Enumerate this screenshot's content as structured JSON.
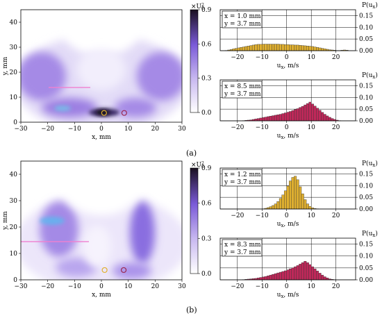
{
  "panels": [
    {
      "caption": "(a)",
      "heatmap": {
        "xlabel": "x, mm",
        "ylabel": "y, mm",
        "xticks": [
          "−30",
          "−20",
          "−10",
          "0",
          "10",
          "20",
          "30"
        ],
        "yticks": [
          "0",
          "10",
          "20",
          "30",
          "40"
        ],
        "colorbar": {
          "label": "×U",
          "label_sup": "2",
          "label_sub": "0",
          "ticks": [
            "0.0",
            "0.3",
            "0.6",
            "0.9"
          ]
        },
        "markers": [
          {
            "x": 1.0,
            "y": 3.7,
            "color": "#e0b030"
          },
          {
            "x": 8.5,
            "y": 3.7,
            "color": "#9b2a52"
          }
        ]
      },
      "histograms": [
        {
          "info_x": "x = 1.0 mm",
          "info_y": "y = 3.7 mm",
          "xlabel": "u",
          "xlabel_sub": "x",
          "xlabel_unit": ", m/s",
          "ylabel": "P(u",
          "ylabel_sub": "x",
          "ylabel_end": ")",
          "color": "#e0b030"
        },
        {
          "info_x": "x = 8.5 mm",
          "info_y": "y = 3.7 mm",
          "xlabel": "u",
          "xlabel_sub": "x",
          "xlabel_unit": ", m/s",
          "ylabel": "P(u",
          "ylabel_sub": "x",
          "ylabel_end": ")",
          "color": "#c0285a"
        }
      ]
    },
    {
      "caption": "(b)",
      "heatmap": {
        "xlabel": "x, mm",
        "ylabel": "y, mm",
        "xticks": [
          "−30",
          "−20",
          "−10",
          "0",
          "10",
          "20",
          "30"
        ],
        "yticks": [
          "0",
          "10",
          "20",
          "30",
          "40"
        ],
        "colorbar": {
          "label": "×U",
          "label_sup": "2",
          "label_sub": "0",
          "ticks": [
            "0.0",
            "0.3",
            "0.6",
            "0.9"
          ]
        },
        "markers": [
          {
            "x": 1.2,
            "y": 3.7,
            "color": "#e0b030"
          },
          {
            "x": 8.3,
            "y": 3.7,
            "color": "#9b2a52"
          }
        ]
      },
      "histograms": [
        {
          "info_x": "x = 1.2 mm",
          "info_y": "y = 3.7 mm",
          "xlabel": "u",
          "xlabel_sub": "x",
          "xlabel_unit": ", m/s",
          "ylabel": "P(u",
          "ylabel_sub": "x",
          "ylabel_end": ")",
          "color": "#e0b030"
        },
        {
          "info_x": "x = 8.3 mm",
          "info_y": "y = 3.7 mm",
          "xlabel": "u",
          "xlabel_sub": "x",
          "xlabel_unit": ", m/s",
          "ylabel": "P(u",
          "ylabel_sub": "x",
          "ylabel_end": ")",
          "color": "#c0285a"
        }
      ]
    }
  ],
  "chart_data": [
    {
      "type": "heatmap",
      "title": "",
      "xlabel": "x, mm",
      "ylabel": "y, mm",
      "xlim": [
        -30,
        30
      ],
      "ylim": [
        0,
        45
      ],
      "color_range": [
        0,
        0.9
      ],
      "colormap": [
        "#ffffff",
        "#c8b8f0",
        "#7a5ad8",
        "#1a1020"
      ],
      "regions": [
        {
          "x": -24,
          "y": 17,
          "level": 0.45
        },
        {
          "x": 24,
          "y": 17,
          "level": 0.45
        },
        {
          "x": -10,
          "y": 6,
          "level": 0.4
        },
        {
          "x": 10,
          "y": 6,
          "level": 0.4
        },
        {
          "x": 1,
          "y": 3,
          "level": 0.9
        },
        {
          "x": 0,
          "y": 28,
          "level": 0.03
        }
      ]
    },
    {
      "type": "bar",
      "title": "",
      "xlabel": "u_x, m/s",
      "ylabel": "P(u_x)",
      "bin_width": 1,
      "bins_start": -25,
      "xlim": [
        -27,
        28
      ],
      "ylim": [
        0,
        0.175
      ],
      "xticks": [
        -20,
        -10,
        0,
        10,
        20
      ],
      "yticks": [
        0.0,
        0.05,
        0.1,
        0.15
      ],
      "values": [
        0.001,
        0.003,
        0.005,
        0.008,
        0.01,
        0.012,
        0.014,
        0.016,
        0.018,
        0.02,
        0.022,
        0.024,
        0.026,
        0.027,
        0.027,
        0.028,
        0.028,
        0.028,
        0.028,
        0.028,
        0.028,
        0.028,
        0.027,
        0.027,
        0.026,
        0.026,
        0.025,
        0.025,
        0.024,
        0.024,
        0.023,
        0.022,
        0.021,
        0.02,
        0.019,
        0.018,
        0.016,
        0.014,
        0.012,
        0.01,
        0.008,
        0.006,
        0.004,
        0.003,
        0.002,
        0.001,
        0.001,
        0.002,
        0.003,
        0.002
      ]
    },
    {
      "type": "bar",
      "title": "",
      "xlabel": "u_x, m/s",
      "ylabel": "P(u_x)",
      "bin_width": 1,
      "bins_start": -25,
      "xlim": [
        -27,
        28
      ],
      "ylim": [
        0,
        0.175
      ],
      "xticks": [
        -20,
        -10,
        0,
        10,
        20
      ],
      "yticks": [
        0.0,
        0.05,
        0.1,
        0.15
      ],
      "values": [
        0,
        0,
        0,
        0,
        0,
        0,
        0,
        0.001,
        0.002,
        0.003,
        0.004,
        0.006,
        0.008,
        0.01,
        0.012,
        0.014,
        0.016,
        0.018,
        0.02,
        0.022,
        0.024,
        0.026,
        0.028,
        0.031,
        0.034,
        0.037,
        0.04,
        0.044,
        0.048,
        0.052,
        0.057,
        0.062,
        0.068,
        0.074,
        0.08,
        0.072,
        0.063,
        0.054,
        0.045,
        0.036,
        0.028,
        0.021,
        0.015,
        0.01,
        0.006,
        0.003,
        0.001,
        0,
        0,
        0
      ]
    },
    {
      "type": "bar",
      "title": "",
      "xlabel": "u_x, m/s",
      "ylabel": "P(u_x)",
      "bin_width": 1,
      "bins_start": -25,
      "xlim": [
        -27,
        28
      ],
      "ylim": [
        0,
        0.175
      ],
      "xticks": [
        -20,
        -10,
        0,
        10,
        20
      ],
      "yticks": [
        0.0,
        0.05,
        0.1,
        0.15
      ],
      "values": [
        0,
        0,
        0,
        0,
        0,
        0,
        0,
        0,
        0,
        0,
        0,
        0,
        0,
        0,
        0,
        0.001,
        0.003,
        0.006,
        0.01,
        0.015,
        0.022,
        0.032,
        0.045,
        0.06,
        0.078,
        0.098,
        0.12,
        0.135,
        0.14,
        0.125,
        0.095,
        0.065,
        0.04,
        0.022,
        0.011,
        0.005,
        0.002,
        0.001,
        0,
        0,
        0,
        0,
        0,
        0,
        0,
        0,
        0,
        0,
        0,
        0
      ]
    },
    {
      "type": "bar",
      "title": "",
      "xlabel": "u_x, m/s",
      "ylabel": "P(u_x)",
      "bin_width": 1,
      "bins_start": -25,
      "xlim": [
        -27,
        28
      ],
      "ylim": [
        0,
        0.175
      ],
      "xticks": [
        -20,
        -10,
        0,
        10,
        20
      ],
      "yticks": [
        0.0,
        0.05,
        0.1,
        0.15
      ],
      "values": [
        0,
        0,
        0,
        0,
        0,
        0,
        0,
        0.001,
        0.002,
        0.003,
        0.004,
        0.005,
        0.006,
        0.008,
        0.01,
        0.012,
        0.014,
        0.017,
        0.02,
        0.023,
        0.026,
        0.029,
        0.032,
        0.035,
        0.038,
        0.042,
        0.046,
        0.05,
        0.055,
        0.06,
        0.066,
        0.072,
        0.078,
        0.072,
        0.064,
        0.055,
        0.046,
        0.037,
        0.028,
        0.02,
        0.013,
        0.008,
        0.004,
        0.002,
        0.001,
        0,
        0,
        0,
        0,
        0
      ]
    }
  ]
}
